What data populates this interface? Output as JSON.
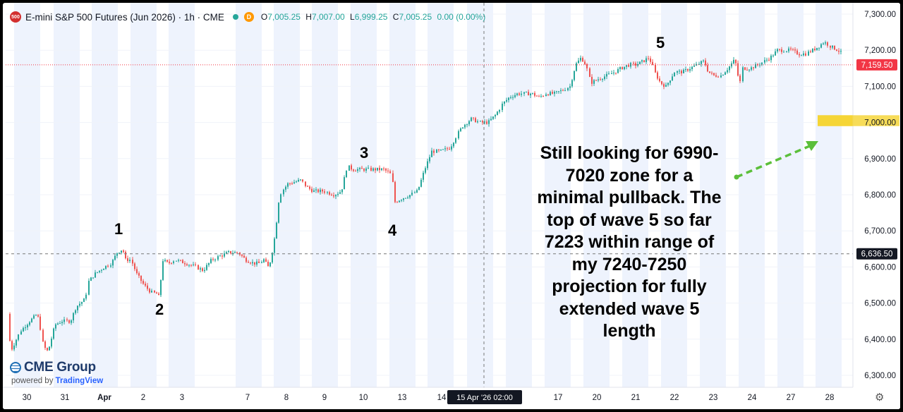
{
  "header": {
    "title": "E-mini S&P 500 Futures (Jun 2026) · 1h · CME",
    "badge": "500",
    "d_badge": "D",
    "open_label": "O",
    "open": "7,005.25",
    "high_label": "H",
    "high": "7,007.00",
    "low_label": "L",
    "low": "6,999.25",
    "close_label": "C",
    "close": "7,005.25",
    "change": "0.00 (0.00%)"
  },
  "logo": {
    "name": "CME Group",
    "powered": "powered by",
    "brand": "TradingView"
  },
  "annotation": {
    "lines": [
      "Still looking for 6990-",
      "7020 zone for a",
      "minimal pullback. The",
      "top of wave 5 so far",
      "7223 within range of",
      "my 7240-7250",
      "projection for fully",
      "extended wave 5",
      "length"
    ]
  },
  "waves": [
    "1",
    "2",
    "3",
    "4",
    "5"
  ],
  "settings_icon": "gear-icon",
  "colors": {
    "up": "#26a69a",
    "down": "#ef5350",
    "session": "#eef3fd",
    "last_price": "#f23645",
    "zone": "#f5d32e",
    "arrow": "#5bbf3a"
  },
  "chart_data": {
    "type": "candlestick",
    "ylim": [
      6265,
      7315
    ],
    "yticks": [
      6300,
      6400,
      6500,
      6600,
      6700,
      6800,
      6900,
      7000,
      7100,
      7200,
      7300
    ],
    "ytick_labels": [
      "6,300.00",
      "6,400.00",
      "6,500.00",
      "6,600.00",
      "6,700.00",
      "6,800.00",
      "6,900.00",
      "7,000.00",
      "7,100.00",
      "7,200.00",
      "7,300.00"
    ],
    "xticks": [
      "30",
      "31",
      "Apr",
      "2",
      "3",
      "7",
      "8",
      "9",
      "10",
      "13",
      "14",
      "17",
      "20",
      "21",
      "22",
      "23",
      "24",
      "27",
      "28"
    ],
    "crosshair_label": "15 Apr '26  02:00",
    "last_price": 7159.5,
    "last_price_label": "7,159.50",
    "crosshair_price": 6636.5,
    "crosshair_price_label": "6,636.50",
    "zone": {
      "low": 6990,
      "high": 7020,
      "label": "7,000.00"
    },
    "path": [
      [
        0,
        6470
      ],
      [
        8,
        6370
      ],
      [
        20,
        6420
      ],
      [
        34,
        6450
      ],
      [
        45,
        6470
      ],
      [
        54,
        6380
      ],
      [
        60,
        6365
      ],
      [
        70,
        6440
      ],
      [
        80,
        6450
      ],
      [
        92,
        6450
      ],
      [
        100,
        6490
      ],
      [
        112,
        6510
      ],
      [
        118,
        6560
      ],
      [
        126,
        6580
      ],
      [
        140,
        6600
      ],
      [
        150,
        6610
      ],
      [
        158,
        6640
      ],
      [
        166,
        6650
      ],
      [
        170,
        6620
      ],
      [
        178,
        6620
      ],
      [
        186,
        6580
      ],
      [
        196,
        6550
      ],
      [
        206,
        6530
      ],
      [
        216,
        6525
      ],
      [
        218,
        6510
      ],
      [
        222,
        6620
      ],
      [
        230,
        6610
      ],
      [
        240,
        6620
      ],
      [
        256,
        6610
      ],
      [
        270,
        6600
      ],
      [
        280,
        6590
      ],
      [
        292,
        6620
      ],
      [
        304,
        6630
      ],
      [
        316,
        6640
      ],
      [
        330,
        6640
      ],
      [
        340,
        6620
      ],
      [
        352,
        6610
      ],
      [
        360,
        6610
      ],
      [
        366,
        6620
      ],
      [
        372,
        6600
      ],
      [
        376,
        6620
      ],
      [
        382,
        6690
      ],
      [
        388,
        6800
      ],
      [
        400,
        6830
      ],
      [
        418,
        6840
      ],
      [
        428,
        6820
      ],
      [
        436,
        6810
      ],
      [
        450,
        6810
      ],
      [
        466,
        6800
      ],
      [
        476,
        6810
      ],
      [
        484,
        6880
      ],
      [
        492,
        6870
      ],
      [
        502,
        6870
      ],
      [
        512,
        6870
      ],
      [
        524,
        6870
      ],
      [
        536,
        6870
      ],
      [
        544,
        6860
      ],
      [
        548,
        6850
      ],
      [
        552,
        6780
      ],
      [
        562,
        6790
      ],
      [
        574,
        6800
      ],
      [
        584,
        6810
      ],
      [
        594,
        6870
      ],
      [
        604,
        6920
      ],
      [
        616,
        6920
      ],
      [
        630,
        6930
      ],
      [
        638,
        6960
      ],
      [
        648,
        6990
      ],
      [
        660,
        7010
      ],
      [
        672,
        7000
      ],
      [
        684,
        7000
      ],
      [
        694,
        7020
      ],
      [
        704,
        7050
      ],
      [
        714,
        7070
      ],
      [
        726,
        7080
      ],
      [
        738,
        7080
      ],
      [
        746,
        7080
      ],
      [
        756,
        7070
      ],
      [
        766,
        7080
      ],
      [
        778,
        7080
      ],
      [
        790,
        7090
      ],
      [
        800,
        7100
      ],
      [
        808,
        7160
      ],
      [
        816,
        7180
      ],
      [
        822,
        7160
      ],
      [
        830,
        7110
      ],
      [
        840,
        7120
      ],
      [
        852,
        7130
      ],
      [
        864,
        7140
      ],
      [
        872,
        7150
      ],
      [
        884,
        7160
      ],
      [
        894,
        7160
      ],
      [
        904,
        7170
      ],
      [
        912,
        7180
      ],
      [
        920,
        7140
      ],
      [
        928,
        7110
      ],
      [
        936,
        7100
      ],
      [
        948,
        7140
      ],
      [
        960,
        7140
      ],
      [
        970,
        7150
      ],
      [
        980,
        7160
      ],
      [
        990,
        7170
      ],
      [
        996,
        7140
      ],
      [
        1004,
        7130
      ],
      [
        1014,
        7130
      ],
      [
        1024,
        7150
      ],
      [
        1032,
        7170
      ],
      [
        1036,
        7160
      ],
      [
        1040,
        7100
      ],
      [
        1044,
        7150
      ],
      [
        1056,
        7150
      ],
      [
        1066,
        7160
      ],
      [
        1076,
        7170
      ],
      [
        1084,
        7180
      ],
      [
        1094,
        7200
      ],
      [
        1104,
        7200
      ],
      [
        1114,
        7200
      ],
      [
        1124,
        7190
      ],
      [
        1134,
        7190
      ],
      [
        1144,
        7200
      ],
      [
        1152,
        7210
      ],
      [
        1160,
        7223
      ],
      [
        1170,
        7210
      ],
      [
        1180,
        7200
      ],
      [
        1186,
        7190
      ],
      [
        1190,
        7159.5
      ]
    ]
  }
}
